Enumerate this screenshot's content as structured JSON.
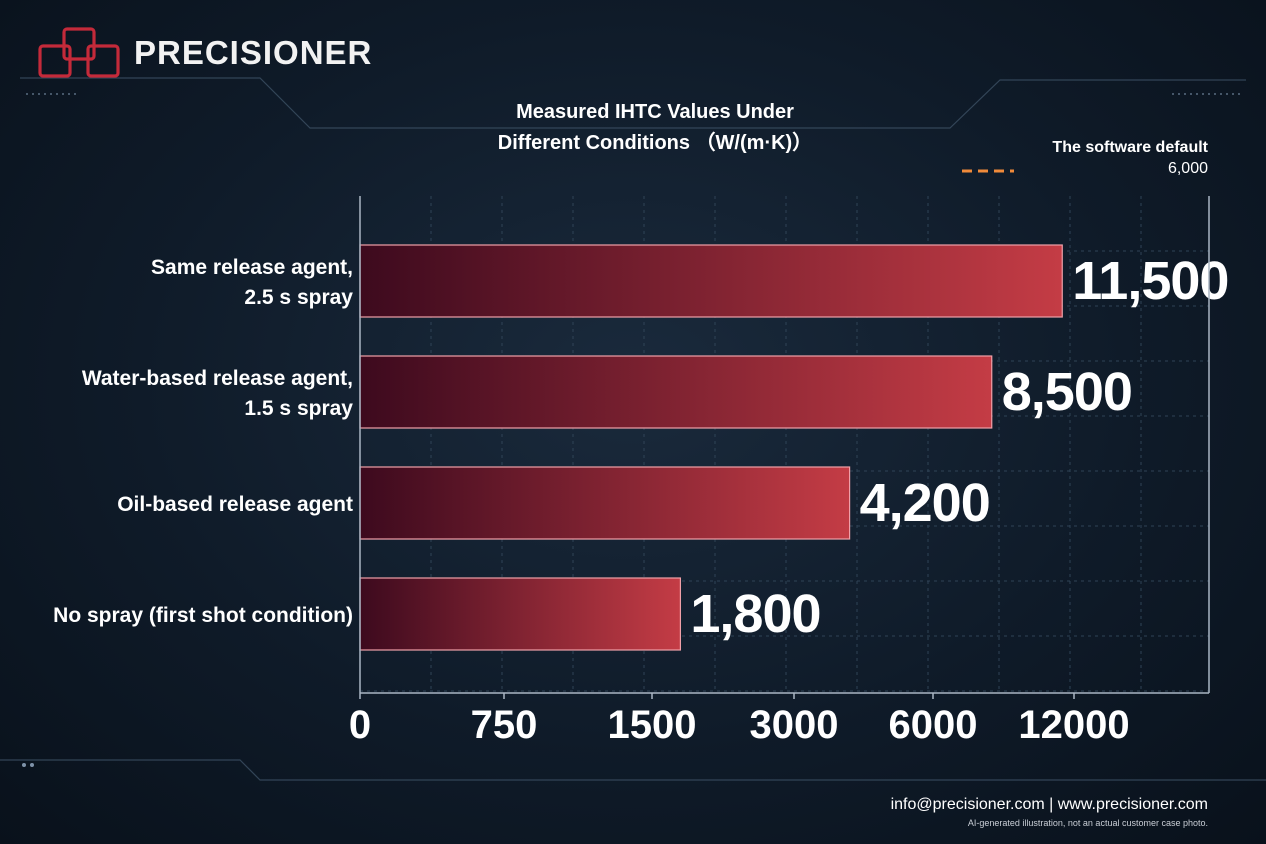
{
  "brand": {
    "name": "PRECISIONER"
  },
  "chart_data": {
    "type": "bar",
    "orientation": "horizontal",
    "title_line1": "Measured IHTC Values Under",
    "title_line2": "Different Conditions （W/(m·K)）",
    "categories": [
      "Same release agent, 2.5 s spray",
      "Water-based release agent, 1.5 s spray",
      "Oil-based release agent",
      "No spray (first shot condition)"
    ],
    "category_lines": [
      [
        "Same release agent,",
        "2.5 s spray"
      ],
      [
        "Water-based release agent,",
        "1.5 s spray"
      ],
      [
        "Oil-based release agent"
      ],
      [
        "No spray (first shot condition)"
      ]
    ],
    "values": [
      11500,
      8500,
      4200,
      1800
    ],
    "value_labels": [
      "11,500",
      "8,500",
      "4,200",
      "1,800"
    ],
    "xticks": [
      0,
      750,
      1500,
      3000,
      6000,
      12000
    ],
    "xtick_labels": [
      "0",
      "750",
      "1500",
      "3000",
      "6000",
      "12000"
    ],
    "scale": "non-linear (doubling ticks)",
    "reference_line": {
      "label": "The software default",
      "value": 6000,
      "value_label": "6,000",
      "style": "dashed orange/white"
    },
    "grid": true,
    "bar_gradient": [
      "#3d0a1e",
      "#c43c45"
    ]
  },
  "footer": {
    "contact": "info@precisioner.com | www.precisioner.com",
    "note": "AI-generated illustration, not an actual customer case photo."
  },
  "colors": {
    "background": "#0f1b29",
    "accent_orange": "#f08a3a",
    "logo_red": "#c42a3a",
    "bar_border": "#f0a0a8"
  }
}
